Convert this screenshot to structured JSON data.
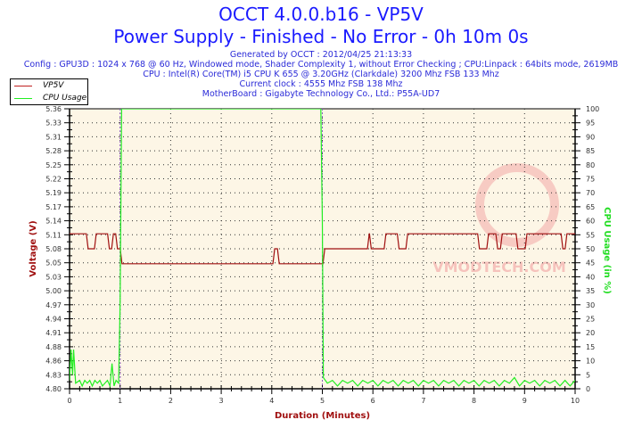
{
  "header": {
    "title": "OCCT 4.0.0.b16 - VP5V",
    "subtitle": "Power Supply - Finished - No Error - 0h 10m 0s",
    "info": [
      "Generated by OCCT : 2012/04/25 21:13:33",
      "Config : GPU3D : 1024 x 768 @ 60 Hz, Windowed mode, Shader Complexity 1, without Error Checking ; CPU:Linpack : 64bits mode, 2619MB",
      "CPU : Intel(R) Core(TM) i5 CPU K 655 @ 3.20GHz (Clarkdale) 3200 Mhz FSB 133 Mhz",
      "Current clock : 4555 Mhz FSB 138 Mhz",
      "MotherBoard : Gigabyte Technology Co., Ltd.: P55A-UD7"
    ]
  },
  "watermark": "VMODTECH.COM",
  "chart_data": {
    "type": "line",
    "xlabel": "Duration (Minutes)",
    "ylabel": "Voltage (V)",
    "y2label": "CPU Usage (in %)",
    "xlim": [
      0,
      10
    ],
    "ylim": [
      4.8,
      5.36
    ],
    "y2lim": [
      0,
      100
    ],
    "xticks": [
      "0",
      "1",
      "2",
      "3",
      "4",
      "5",
      "6",
      "7",
      "8",
      "9",
      "10"
    ],
    "yticks": [
      "4.80",
      "4.83",
      "4.86",
      "4.88",
      "4.91",
      "4.94",
      "4.97",
      "5.00",
      "5.03",
      "5.05",
      "5.08",
      "5.11",
      "5.14",
      "5.17",
      "5.19",
      "5.22",
      "5.25",
      "5.28",
      "5.31",
      "5.33",
      "5.36"
    ],
    "y2ticks": [
      "0",
      "5",
      "10",
      "15",
      "20",
      "25",
      "30",
      "35",
      "40",
      "45",
      "50",
      "55",
      "60",
      "65",
      "70",
      "75",
      "80",
      "85",
      "90",
      "95",
      "100"
    ],
    "grid": true,
    "markers": [
      1.0,
      5.0
    ],
    "legend": "top-left",
    "series": [
      {
        "name": "VP5V",
        "color": "#a01010",
        "axis": "left",
        "step": true,
        "points": [
          [
            0,
            5.11
          ],
          [
            0.35,
            5.08
          ],
          [
            0.51,
            5.11
          ],
          [
            0.77,
            5.08
          ],
          [
            0.85,
            5.11
          ],
          [
            0.93,
            5.08
          ],
          [
            1.02,
            5.05
          ],
          [
            4.04,
            5.08
          ],
          [
            4.13,
            5.05
          ],
          [
            5.03,
            5.08
          ],
          [
            5.91,
            5.11
          ],
          [
            5.95,
            5.08
          ],
          [
            6.24,
            5.11
          ],
          [
            6.5,
            5.08
          ],
          [
            6.67,
            5.11
          ],
          [
            8.09,
            5.08
          ],
          [
            8.27,
            5.11
          ],
          [
            8.45,
            5.08
          ],
          [
            8.54,
            5.11
          ],
          [
            8.85,
            5.08
          ],
          [
            9.03,
            5.11
          ],
          [
            9.74,
            5.08
          ],
          [
            9.82,
            5.11
          ],
          [
            10,
            5.11
          ]
        ]
      },
      {
        "name": "CPU Usage",
        "color": "#22ee22",
        "axis": "right",
        "step": false,
        "points": [
          [
            0,
            3
          ],
          [
            0.03,
            14
          ],
          [
            0.06,
            5
          ],
          [
            0.08,
            14
          ],
          [
            0.12,
            2
          ],
          [
            0.2,
            3
          ],
          [
            0.25,
            1
          ],
          [
            0.3,
            3
          ],
          [
            0.35,
            2
          ],
          [
            0.4,
            3
          ],
          [
            0.45,
            1
          ],
          [
            0.5,
            3
          ],
          [
            0.55,
            2
          ],
          [
            0.6,
            3
          ],
          [
            0.65,
            1
          ],
          [
            0.7,
            2
          ],
          [
            0.75,
            3
          ],
          [
            0.8,
            1
          ],
          [
            0.84,
            9
          ],
          [
            0.88,
            1
          ],
          [
            0.92,
            3
          ],
          [
            0.97,
            2
          ],
          [
            1.0,
            30
          ],
          [
            1.03,
            100
          ],
          [
            4.97,
            100
          ],
          [
            5.0,
            60
          ],
          [
            5.02,
            4
          ],
          [
            5.1,
            2
          ],
          [
            5.2,
            3
          ],
          [
            5.3,
            1
          ],
          [
            5.4,
            3
          ],
          [
            5.5,
            2
          ],
          [
            5.6,
            3
          ],
          [
            5.7,
            1
          ],
          [
            5.8,
            3
          ],
          [
            5.9,
            2
          ],
          [
            6.0,
            3
          ],
          [
            6.1,
            1
          ],
          [
            6.2,
            3
          ],
          [
            6.3,
            2
          ],
          [
            6.4,
            3
          ],
          [
            6.5,
            1
          ],
          [
            6.6,
            3
          ],
          [
            6.7,
            2
          ],
          [
            6.8,
            3
          ],
          [
            6.9,
            1
          ],
          [
            7.0,
            3
          ],
          [
            7.1,
            2
          ],
          [
            7.2,
            3
          ],
          [
            7.3,
            1
          ],
          [
            7.4,
            3
          ],
          [
            7.5,
            2
          ],
          [
            7.6,
            3
          ],
          [
            7.7,
            1
          ],
          [
            7.8,
            3
          ],
          [
            7.9,
            2
          ],
          [
            8.0,
            3
          ],
          [
            8.1,
            1
          ],
          [
            8.2,
            3
          ],
          [
            8.3,
            2
          ],
          [
            8.4,
            3
          ],
          [
            8.5,
            1
          ],
          [
            8.6,
            3
          ],
          [
            8.7,
            2
          ],
          [
            8.8,
            4
          ],
          [
            8.9,
            1
          ],
          [
            9.0,
            3
          ],
          [
            9.1,
            2
          ],
          [
            9.2,
            3
          ],
          [
            9.3,
            1
          ],
          [
            9.4,
            3
          ],
          [
            9.5,
            2
          ],
          [
            9.6,
            3
          ],
          [
            9.7,
            1
          ],
          [
            9.8,
            3
          ],
          [
            9.9,
            1
          ],
          [
            10,
            3
          ]
        ]
      }
    ]
  }
}
